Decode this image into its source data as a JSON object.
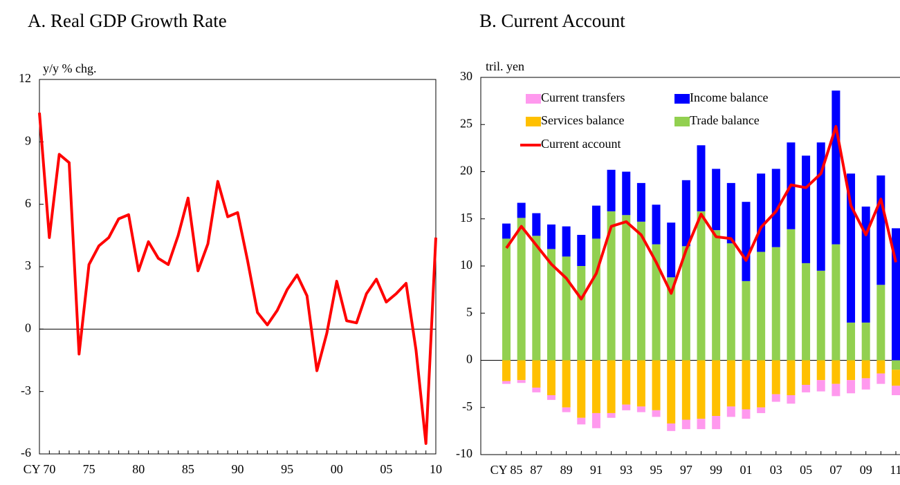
{
  "chart_data": [
    {
      "type": "line",
      "title": "A. Real GDP Growth Rate",
      "y_label": "y/y % chg.",
      "categories": [
        "CY 70",
        null,
        null,
        null,
        null,
        "75",
        null,
        null,
        null,
        null,
        "80",
        null,
        null,
        null,
        null,
        "85",
        null,
        null,
        null,
        null,
        "90",
        null,
        null,
        null,
        null,
        "95",
        null,
        null,
        null,
        null,
        "00",
        null,
        null,
        null,
        null,
        "05",
        null,
        null,
        null,
        null,
        "10"
      ],
      "series": [
        {
          "name": null,
          "color": "#ff0000",
          "values": [
            10.4,
            4.4,
            8.4,
            8.0,
            -1.2,
            3.1,
            4.0,
            4.4,
            5.3,
            5.5,
            2.8,
            4.2,
            3.4,
            3.1,
            4.5,
            6.3,
            2.8,
            4.1,
            7.1,
            5.4,
            5.6,
            3.3,
            0.8,
            0.2,
            0.9,
            1.9,
            2.6,
            1.6,
            -2.0,
            -0.2,
            2.3,
            0.4,
            0.3,
            1.7,
            2.4,
            1.3,
            1.7,
            2.2,
            -1.0,
            -5.5,
            4.4
          ]
        }
      ],
      "ylim": [
        -6,
        12
      ],
      "yticks": [
        -6,
        -3,
        0,
        3,
        6,
        9,
        12
      ]
    },
    {
      "type": "bar",
      "title": "B. Current Account",
      "y_label": "tril. yen",
      "categories": [
        "CY 85",
        null,
        "87",
        null,
        "89",
        null,
        "91",
        null,
        "93",
        null,
        "95",
        null,
        "97",
        null,
        "99",
        null,
        "01",
        null,
        "03",
        null,
        "05",
        null,
        "07",
        null,
        "09",
        null,
        "11"
      ],
      "series": [
        {
          "name": "Current transfers",
          "color": "#ff99ee",
          "values": [
            -0.3,
            -0.3,
            -0.5,
            -0.5,
            -0.5,
            -0.7,
            -1.6,
            -0.5,
            -0.6,
            -0.6,
            -0.7,
            -0.8,
            -1.0,
            -1.1,
            -1.4,
            -1.1,
            -1.0,
            -0.6,
            -0.8,
            -0.9,
            -0.8,
            -1.2,
            -1.3,
            -1.4,
            -1.2,
            -1.1,
            -1.0
          ]
        },
        {
          "name": "Income balance",
          "color": "#0000ff",
          "values": [
            1.6,
            1.6,
            2.4,
            2.6,
            3.2,
            3.3,
            3.5,
            4.4,
            4.6,
            4.1,
            4.2,
            5.8,
            7.0,
            7.0,
            6.5,
            6.4,
            8.4,
            8.3,
            8.3,
            9.2,
            11.4,
            13.6,
            16.3,
            15.8,
            12.3,
            11.6,
            14.0
          ]
        },
        {
          "name": "Services balance",
          "color": "#ffc000",
          "values": [
            -2.2,
            -2.1,
            -2.9,
            -3.7,
            -5.0,
            -6.1,
            -5.6,
            -5.6,
            -4.7,
            -4.9,
            -5.3,
            -6.7,
            -6.3,
            -6.2,
            -5.9,
            -4.9,
            -5.2,
            -5.0,
            -3.6,
            -3.7,
            -2.6,
            -2.1,
            -2.5,
            -2.1,
            -1.9,
            -1.4,
            -1.7
          ]
        },
        {
          "name": "Trade balance",
          "color": "#92d050",
          "values": [
            12.9,
            15.1,
            13.2,
            11.8,
            11.0,
            10.0,
            12.9,
            15.8,
            15.4,
            14.7,
            12.3,
            8.8,
            12.1,
            15.8,
            13.8,
            12.4,
            8.4,
            11.5,
            12.0,
            13.9,
            10.3,
            9.5,
            12.3,
            4.0,
            4.0,
            8.0,
            -1.0
          ]
        },
        {
          "name": "Current account",
          "type": "line",
          "color": "#ff0000",
          "values": [
            11.9,
            14.2,
            12.2,
            10.2,
            8.7,
            6.5,
            9.2,
            14.2,
            14.7,
            13.3,
            10.4,
            7.1,
            11.7,
            15.5,
            13.1,
            12.9,
            10.6,
            14.1,
            15.8,
            18.6,
            18.3,
            19.8,
            24.8,
            16.4,
            13.3,
            17.1,
            10.4
          ]
        }
      ],
      "ylim": [
        -10,
        30
      ],
      "yticks": [
        -10,
        -5,
        0,
        5,
        10,
        15,
        20,
        25,
        30
      ]
    }
  ]
}
